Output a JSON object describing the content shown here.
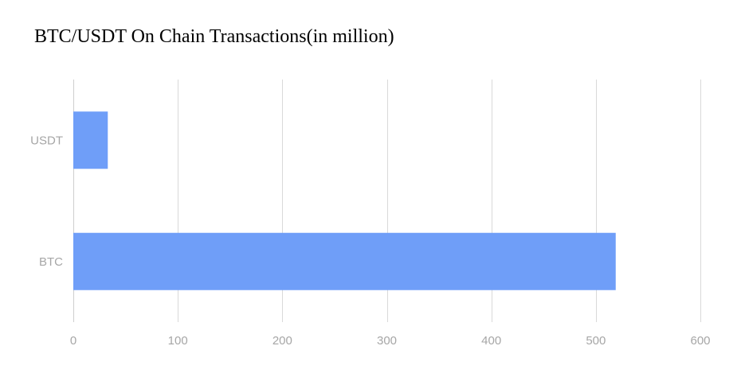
{
  "chart_data": {
    "type": "bar",
    "orientation": "horizontal",
    "title": "BTC/USDT On Chain Transactions(in million)",
    "categories": [
      "USDT",
      "BTC"
    ],
    "values": [
      33,
      519
    ],
    "xlim": [
      0,
      600
    ],
    "x_ticks": [
      0,
      100,
      200,
      300,
      400,
      500,
      600
    ],
    "grid": true,
    "bar_color": "#6f9ef8",
    "grid_color": "#d9d9d9",
    "tick_color": "#a6a6a6"
  }
}
